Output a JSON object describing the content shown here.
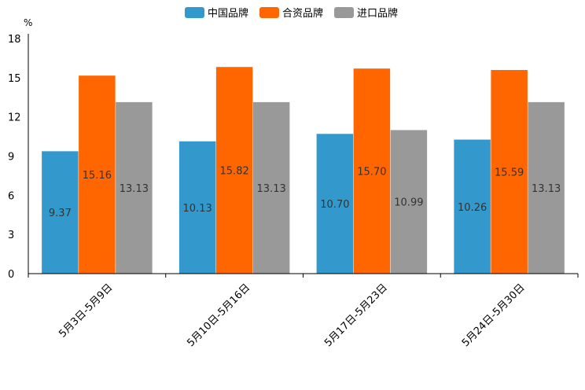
{
  "chart_data": {
    "type": "bar",
    "unit": "%",
    "categories": [
      "5月3日-5月9日",
      "5月10日-5月16日",
      "5月17日-5月23日",
      "5月24日-5月30日"
    ],
    "series": [
      {
        "name": "中国品牌",
        "color": "#3399cc",
        "values": [
          9.37,
          10.13,
          10.7,
          10.26
        ],
        "labels": [
          "9.37",
          "10.13",
          "10.70",
          "10.26"
        ]
      },
      {
        "name": "合资品牌",
        "color": "#ff6600",
        "values": [
          15.16,
          15.82,
          15.7,
          15.59
        ],
        "labels": [
          "15.16",
          "15.82",
          "15.70",
          "15.59"
        ]
      },
      {
        "name": "进口品牌",
        "color": "#999999",
        "values": [
          13.13,
          13.13,
          10.99,
          13.13
        ],
        "labels": [
          "13.13",
          "13.13",
          "10.99",
          "13.13"
        ]
      }
    ],
    "ylim": [
      0,
      18
    ],
    "yticks": [
      "0",
      "3",
      "6",
      "9",
      "12",
      "15",
      "18"
    ],
    "title": "",
    "xlabel": "",
    "ylabel": "%",
    "legend_position": "top-center",
    "grid": false
  }
}
